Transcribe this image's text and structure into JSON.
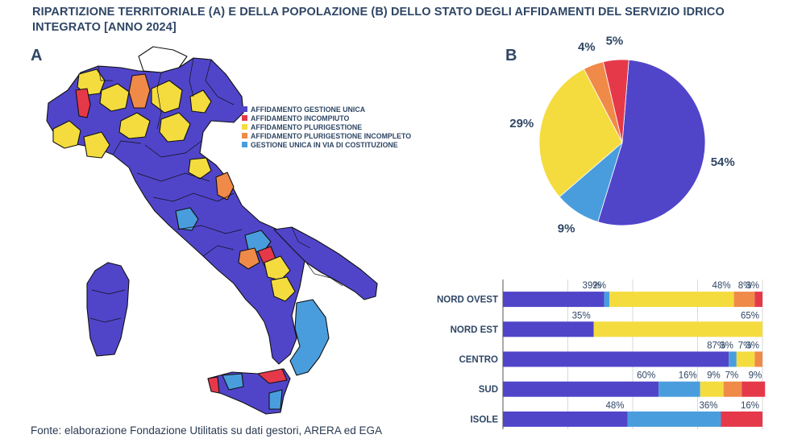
{
  "title": "RIPARTIZIONE TERRITORIALE (A) E DELLA POPOLAZIONE (B) DELLO STATO DEGLI AFFIDAMENTI DEL SERVIZIO IDRICO INTEGRATO [ANNO 2024]",
  "panel_a_label": "A",
  "panel_b_label": "B",
  "source": "Fonte: elaborazione Fondazione Utilitatis su dati gestori, ARERA ed EGA",
  "colors": {
    "gestione_unica": "#5045c9",
    "incompiuto": "#e5394a",
    "plurigestione": "#f4dc3f",
    "plurigestione_incompleto": "#f08a48",
    "in_via_costituzione": "#4a9ddd"
  },
  "legend": [
    {
      "label": "AFFIDAMENTO GESTIONE UNICA",
      "color": "#5045c9"
    },
    {
      "label": "AFFIDAMENTO INCOMPIUTO",
      "color": "#e5394a"
    },
    {
      "label": "AFFIDAMENTO PLURIGESTIONE",
      "color": "#f4dc3f"
    },
    {
      "label": "AFFIDAMENTO PLURIGESTIONE INCOMPLETO",
      "color": "#f08a48"
    },
    {
      "label": "GESTIONE UNICA IN VIA DI COSTITUZIONE",
      "color": "#4a9ddd"
    }
  ],
  "chart_data": [
    {
      "type": "pie",
      "slices": [
        {
          "label": "54%",
          "value": 54,
          "color": "#5045c9"
        },
        {
          "label": "9%",
          "value": 9,
          "color": "#4a9ddd"
        },
        {
          "label": "29%",
          "value": 29,
          "color": "#f4dc3f"
        },
        {
          "label": "4%",
          "value": 4,
          "color": "#f08a48"
        },
        {
          "label": "5%",
          "value": 5,
          "color": "#e5394a"
        }
      ]
    },
    {
      "type": "bar",
      "orientation": "horizontal",
      "stacked": true,
      "categories": [
        "NORD OVEST",
        "NORD EST",
        "CENTRO",
        "SUD",
        "ISOLE"
      ],
      "series": [
        {
          "color": "#5045c9",
          "values": [
            39,
            35,
            87,
            60,
            48
          ]
        },
        {
          "color": "#4a9ddd",
          "values": [
            2,
            0,
            3,
            16,
            36
          ]
        },
        {
          "color": "#f4dc3f",
          "values": [
            48,
            65,
            7,
            9,
            0
          ]
        },
        {
          "color": "#f08a48",
          "values": [
            8,
            0,
            3,
            7,
            0
          ]
        },
        {
          "color": "#e5394a",
          "values": [
            3,
            0,
            0,
            9,
            16
          ]
        }
      ],
      "xlim": [
        0,
        100
      ]
    }
  ]
}
